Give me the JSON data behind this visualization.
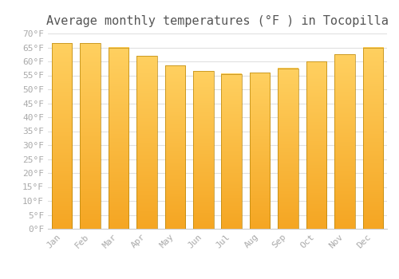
{
  "title": "Average monthly temperatures (°F ) in Tocopilla",
  "months": [
    "Jan",
    "Feb",
    "Mar",
    "Apr",
    "May",
    "Jun",
    "Jul",
    "Aug",
    "Sep",
    "Oct",
    "Nov",
    "Dec"
  ],
  "values": [
    66.5,
    66.5,
    65.0,
    62.0,
    58.5,
    56.5,
    55.5,
    56.0,
    57.5,
    60.0,
    62.5,
    65.0
  ],
  "bar_color_bottom": "#F5A623",
  "bar_color_top": "#FFD060",
  "bar_edge_color": "#B8860B",
  "ylim": [
    0,
    70
  ],
  "background_color": "#ffffff",
  "grid_color": "#e0e0e0",
  "title_fontsize": 11,
  "tick_fontsize": 8,
  "bar_width": 0.72
}
